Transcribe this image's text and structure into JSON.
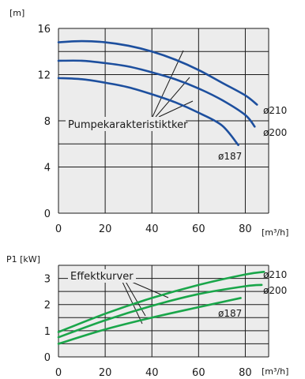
{
  "colors": {
    "plot_bg": "#ececec",
    "grid": "#1a1a1a",
    "blue_curve": "#1d4f9e",
    "green_curve": "#1aa64a",
    "leader": "#1a1a1a"
  },
  "chart_data": [
    {
      "type": "line",
      "ylabel": "[m]",
      "xlabel": "[m³/h]",
      "xlim": [
        0,
        90
      ],
      "ylim": [
        0,
        16
      ],
      "x_ticks": [
        "0",
        "20",
        "40",
        "60",
        "80"
      ],
      "y_ticks": [
        "0",
        "4",
        "8",
        "12",
        "16"
      ],
      "grid": true,
      "annotation": "Pumpekarakteristiktker",
      "series": [
        {
          "name": "ø210",
          "x": [
            0,
            10,
            20,
            30,
            40,
            50,
            60,
            70,
            80,
            85
          ],
          "values": [
            14.8,
            14.9,
            14.8,
            14.5,
            14.0,
            13.3,
            12.4,
            11.3,
            10.2,
            9.4
          ]
        },
        {
          "name": "ø200",
          "x": [
            0,
            10,
            20,
            30,
            40,
            50,
            60,
            70,
            80,
            84
          ],
          "values": [
            13.2,
            13.2,
            13.0,
            12.7,
            12.2,
            11.6,
            10.8,
            9.8,
            8.5,
            7.5
          ]
        },
        {
          "name": "ø187",
          "x": [
            0,
            10,
            20,
            30,
            40,
            50,
            60,
            70,
            77
          ],
          "values": [
            11.7,
            11.6,
            11.3,
            10.9,
            10.3,
            9.6,
            8.7,
            7.6,
            5.9
          ]
        }
      ]
    },
    {
      "type": "line",
      "ylabel": "P1 [kW]",
      "xlabel": "[m³/h]",
      "xlim": [
        0,
        90
      ],
      "ylim": [
        0,
        3.5
      ],
      "x_ticks": [
        "0",
        "20",
        "40",
        "60",
        "80"
      ],
      "y_ticks": [
        "0",
        "1",
        "2",
        "3"
      ],
      "grid": true,
      "annotation": "Effektkurver",
      "series": [
        {
          "name": "ø210",
          "x": [
            0,
            20,
            40,
            60,
            80,
            88
          ],
          "values": [
            0.95,
            1.65,
            2.25,
            2.75,
            3.15,
            3.25
          ]
        },
        {
          "name": "ø200",
          "x": [
            0,
            20,
            40,
            60,
            80,
            87
          ],
          "values": [
            0.75,
            1.4,
            1.95,
            2.4,
            2.7,
            2.75
          ]
        },
        {
          "name": "ø187",
          "x": [
            0,
            20,
            40,
            60,
            78
          ],
          "values": [
            0.5,
            1.05,
            1.5,
            1.9,
            2.25
          ]
        }
      ]
    }
  ]
}
